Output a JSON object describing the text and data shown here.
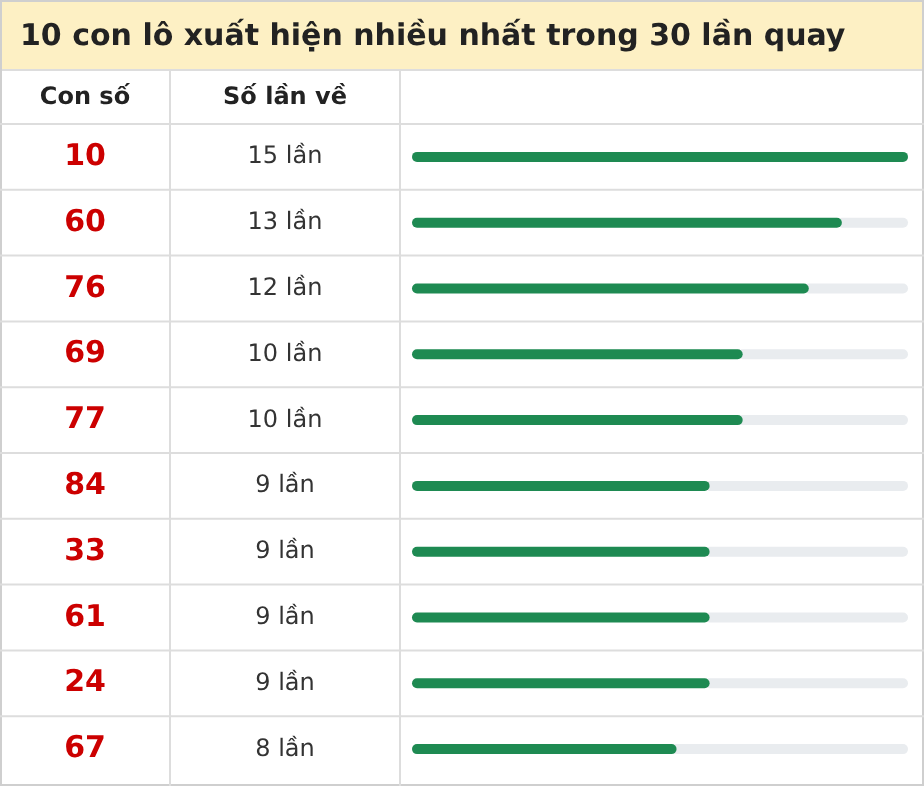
{
  "chart_data": {
    "type": "bar",
    "orientation": "horizontal",
    "title": "10 con lô xuất hiện nhiều nhất trong 30 lần quay",
    "ylabel": "Con số",
    "xlabel": "Số lần về",
    "categories": [
      "10",
      "60",
      "76",
      "69",
      "77",
      "84",
      "33",
      "61",
      "24",
      "67"
    ],
    "values": [
      15,
      13,
      12,
      10,
      10,
      9,
      9,
      9,
      9,
      8
    ],
    "value_labels": [
      "15 lần",
      "13 lần",
      "12 lần",
      "10 lần",
      "10 lần",
      "9 lần",
      "9 lần",
      "9 lần",
      "9 lần",
      "8 lần"
    ],
    "color": "#1e8a52"
  }
}
